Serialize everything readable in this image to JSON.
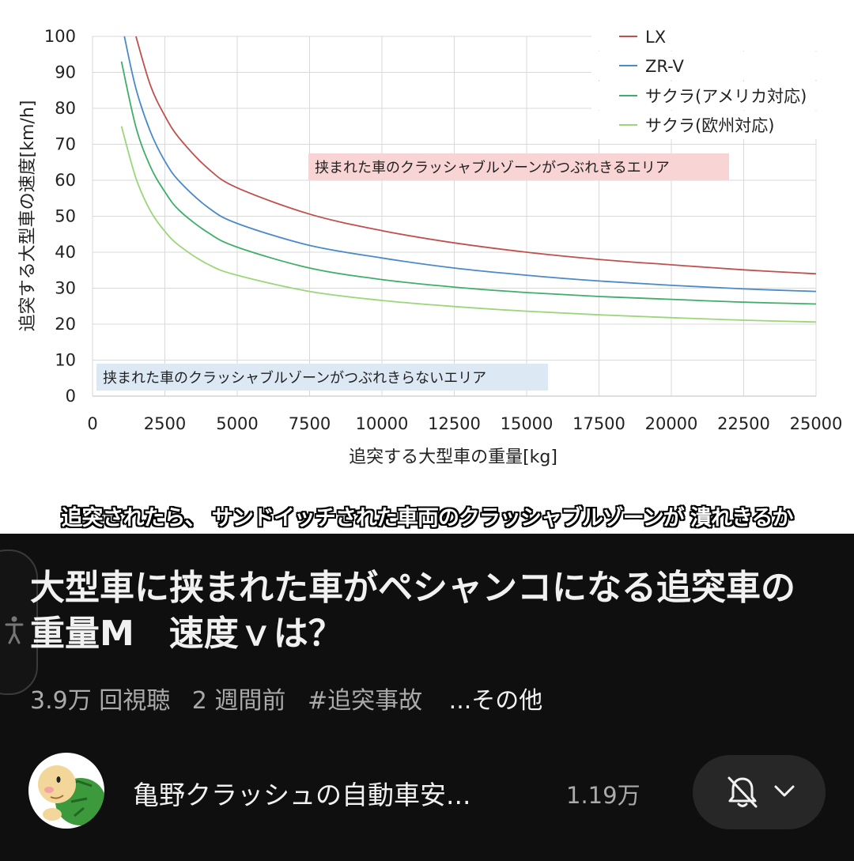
{
  "chart_data": {
    "type": "line",
    "xlabel": "追突する大型車の重量[kg]",
    "ylabel": "追突する大型車の速度[km/h]",
    "xlim": [
      0,
      25000
    ],
    "ylim": [
      0,
      100
    ],
    "xticks": [
      "0",
      "2500",
      "5000",
      "7500",
      "10000",
      "12500",
      "15000",
      "17500",
      "20000",
      "22500",
      "25000"
    ],
    "yticks": [
      "0",
      "10",
      "20",
      "30",
      "40",
      "50",
      "60",
      "70",
      "80",
      "90",
      "100"
    ],
    "grid": true,
    "legend_position": "top-right",
    "series": [
      {
        "name": "LX",
        "color": "#c0504d",
        "x": [
          1500,
          2000,
          2500,
          3000,
          4000,
          5000,
          7500,
          10000,
          12500,
          15000,
          17500,
          20000,
          22500,
          25000
        ],
        "y": [
          100,
          86.4,
          77.9,
          71.7,
          63.2,
          57.9,
          50.6,
          46.0,
          42.6,
          40.0,
          38.0,
          36.5,
          35.1,
          34.0
        ]
      },
      {
        "name": "ZR-V",
        "color": "#4a8ac9",
        "x": [
          1100,
          1500,
          2000,
          2500,
          3000,
          4000,
          5000,
          7500,
          10000,
          12500,
          15000,
          17500,
          20000,
          22500,
          25000
        ],
        "y": [
          100,
          85.5,
          73.5,
          65.3,
          59.7,
          52.4,
          48.0,
          41.9,
          38.4,
          35.6,
          33.6,
          32.0,
          30.8,
          29.8,
          29.1
        ]
      },
      {
        "name": "サクラ(アメリカ対応)",
        "color": "#3fae6a",
        "x": [
          1000,
          1500,
          2000,
          2500,
          3000,
          4000,
          5000,
          7500,
          10000,
          12500,
          15000,
          17500,
          20000,
          22500,
          25000
        ],
        "y": [
          93,
          74.8,
          63.8,
          56.8,
          51.6,
          45.4,
          41.4,
          35.6,
          32.4,
          30.3,
          28.8,
          27.7,
          26.9,
          26.1,
          25.6
        ]
      },
      {
        "name": "サクラ(欧州対応)",
        "color": "#9bd67a",
        "x": [
          1000,
          1500,
          2000,
          2500,
          3000,
          4000,
          5000,
          7500,
          10000,
          12500,
          15000,
          17500,
          20000,
          22500,
          25000
        ],
        "y": [
          75,
          60.6,
          51.5,
          45.8,
          41.8,
          36.6,
          33.6,
          29.1,
          26.6,
          24.9,
          23.6,
          22.6,
          21.8,
          21.1,
          20.6
        ]
      }
    ],
    "annotations": [
      {
        "text": "挟まれた車のクラッシャブルゾーンがつぶれきるエリア",
        "color": "#f9d4d4"
      },
      {
        "text": "挟まれた車のクラッシャブルゾーンがつぶれきらないエリア",
        "color": "#dce9f5"
      }
    ]
  },
  "video": {
    "subtitle": "追突されたら、 サンドイッチされた車両のクラッシャブルゾーンが 潰れきるか"
  },
  "info": {
    "title": "大型車に挟まれた車がペシャンコになる追突車の重量M　速度ｖは？",
    "views": "3.9万 回視聴",
    "age": "2 週間前",
    "hashtag": "#追突事故",
    "more": "...その他",
    "channel_name": "亀野クラッシュの自動車安...",
    "subscribers": "1.19万",
    "icons": {
      "notify": "bell-off-icon",
      "dropdown": "chevron-down-icon",
      "accessibility": "accessibility-icon",
      "avatar": "turtle-avatar"
    }
  }
}
